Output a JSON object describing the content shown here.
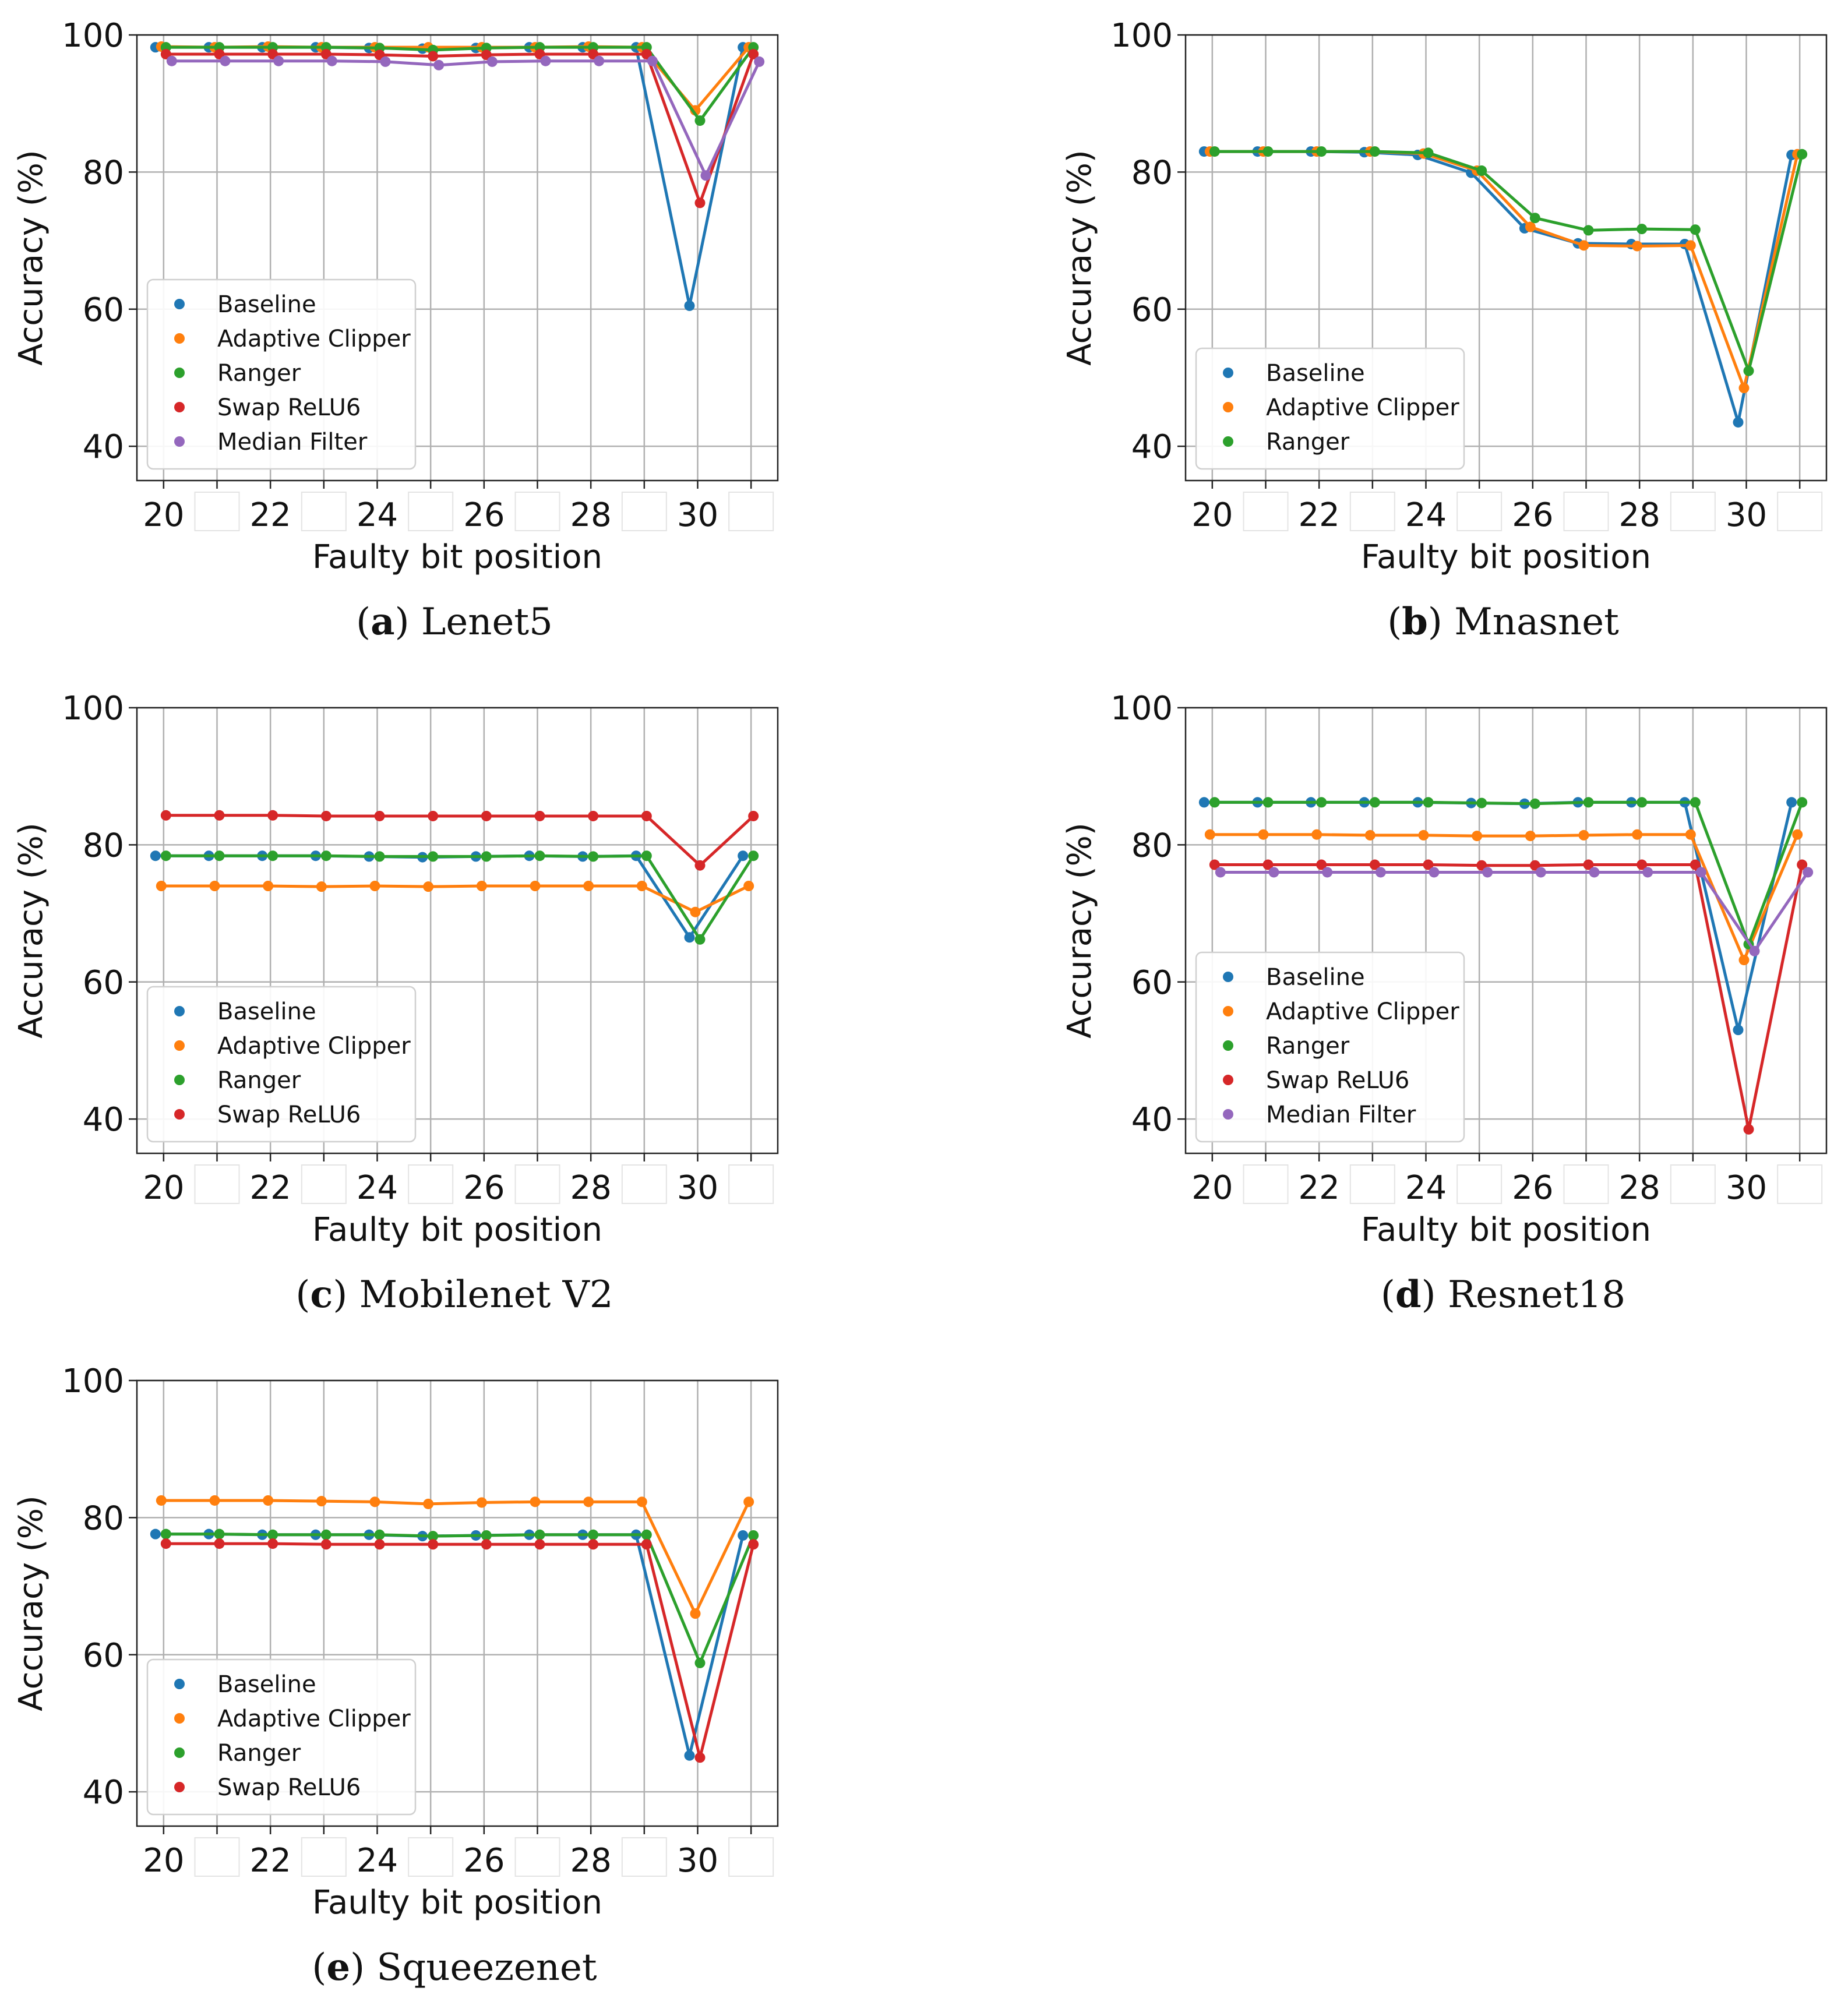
{
  "colors": {
    "Baseline": "#1f77b4",
    "Adaptive Clipper": "#ff7f0e",
    "Ranger": "#2ca02c",
    "Swap ReLU6": "#d62728",
    "Median Filter": "#9467bd"
  },
  "chart_data": [
    {
      "panel": "a",
      "type": "line",
      "caption_letter": "a",
      "caption_text": "Lenet5",
      "xlabel": "Faulty bit position",
      "ylabel": "Accuracy (%)",
      "xticks": [
        "20",
        "22",
        "24",
        "26",
        "28",
        "30"
      ],
      "yticks": [
        "40",
        "60",
        "80",
        "100"
      ],
      "ylim": [
        35,
        100
      ],
      "legend_position": "lower-left",
      "grid": true,
      "x": [
        20,
        21,
        22,
        23,
        24,
        25,
        26,
        27,
        28,
        29,
        30,
        31
      ],
      "series": [
        {
          "name": "Baseline",
          "values": [
            98.2,
            98.2,
            98.2,
            98.2,
            98.1,
            98.0,
            98.1,
            98.2,
            98.2,
            98.2,
            60.5,
            98.2
          ]
        },
        {
          "name": "Adaptive Clipper",
          "values": [
            98.3,
            98.2,
            98.3,
            98.2,
            98.2,
            98.2,
            98.2,
            98.2,
            98.3,
            98.2,
            89.0,
            98.2
          ]
        },
        {
          "name": "Ranger",
          "values": [
            98.2,
            98.2,
            98.2,
            98.2,
            98.1,
            97.8,
            98.1,
            98.2,
            98.2,
            98.2,
            87.5,
            98.2
          ]
        },
        {
          "name": "Swap ReLU6",
          "values": [
            97.2,
            97.2,
            97.2,
            97.2,
            97.1,
            96.9,
            97.1,
            97.2,
            97.2,
            97.2,
            75.5,
            97.2
          ]
        },
        {
          "name": "Median Filter",
          "values": [
            96.2,
            96.2,
            96.2,
            96.2,
            96.1,
            95.6,
            96.1,
            96.2,
            96.2,
            96.2,
            79.5,
            96.1
          ]
        }
      ]
    },
    {
      "panel": "b",
      "type": "line",
      "caption_letter": "b",
      "caption_text": "Mnasnet",
      "xlabel": "Faulty bit position",
      "ylabel": "Accuracy (%)",
      "xticks": [
        "20",
        "22",
        "24",
        "26",
        "28",
        "30"
      ],
      "yticks": [
        "40",
        "60",
        "80",
        "100"
      ],
      "ylim": [
        35,
        100
      ],
      "legend_position": "lower-left",
      "grid": true,
      "x": [
        20,
        21,
        22,
        23,
        24,
        25,
        26,
        27,
        28,
        29,
        30,
        31
      ],
      "series": [
        {
          "name": "Baseline",
          "values": [
            83.0,
            83.0,
            83.0,
            82.9,
            82.5,
            79.9,
            71.8,
            69.6,
            69.5,
            69.5,
            43.5,
            82.5
          ]
        },
        {
          "name": "Adaptive Clipper",
          "values": [
            83.0,
            83.0,
            83.0,
            83.0,
            82.7,
            80.2,
            72.0,
            69.3,
            69.2,
            69.3,
            48.5,
            82.6
          ]
        },
        {
          "name": "Ranger",
          "values": [
            83.0,
            83.0,
            83.0,
            83.0,
            82.8,
            80.2,
            73.3,
            71.5,
            71.7,
            71.6,
            51.0,
            82.6
          ]
        }
      ]
    },
    {
      "panel": "c",
      "type": "line",
      "caption_letter": "c",
      "caption_text": "Mobilenet V2",
      "xlabel": "Faulty bit position",
      "ylabel": "Accuracy (%)",
      "xticks": [
        "20",
        "22",
        "24",
        "26",
        "28",
        "30"
      ],
      "yticks": [
        "40",
        "60",
        "80",
        "100"
      ],
      "ylim": [
        35,
        100
      ],
      "legend_position": "lower-left",
      "grid": true,
      "x": [
        20,
        21,
        22,
        23,
        24,
        25,
        26,
        27,
        28,
        29,
        30,
        31
      ],
      "series": [
        {
          "name": "Baseline",
          "values": [
            78.4,
            78.4,
            78.4,
            78.4,
            78.3,
            78.2,
            78.3,
            78.4,
            78.3,
            78.4,
            66.5,
            78.4
          ]
        },
        {
          "name": "Adaptive Clipper",
          "values": [
            74.0,
            74.0,
            74.0,
            73.9,
            74.0,
            73.9,
            74.0,
            74.0,
            74.0,
            74.0,
            70.2,
            74.0
          ]
        },
        {
          "name": "Ranger",
          "values": [
            78.4,
            78.4,
            78.4,
            78.4,
            78.3,
            78.3,
            78.3,
            78.4,
            78.3,
            78.4,
            66.2,
            78.4
          ]
        },
        {
          "name": "Swap ReLU6",
          "values": [
            84.3,
            84.3,
            84.3,
            84.2,
            84.2,
            84.2,
            84.2,
            84.2,
            84.2,
            84.2,
            77.0,
            84.2
          ]
        }
      ]
    },
    {
      "panel": "d",
      "type": "line",
      "caption_letter": "d",
      "caption_text": "Resnet18",
      "xlabel": "Faulty bit position",
      "ylabel": "Accuracy (%)",
      "xticks": [
        "20",
        "22",
        "24",
        "26",
        "28",
        "30"
      ],
      "yticks": [
        "40",
        "60",
        "80",
        "100"
      ],
      "ylim": [
        35,
        100
      ],
      "legend_position": "lower-left",
      "grid": true,
      "x": [
        20,
        21,
        22,
        23,
        24,
        25,
        26,
        27,
        28,
        29,
        30,
        31
      ],
      "series": [
        {
          "name": "Baseline",
          "values": [
            86.2,
            86.2,
            86.2,
            86.2,
            86.2,
            86.1,
            86.0,
            86.2,
            86.2,
            86.2,
            53.0,
            86.2
          ]
        },
        {
          "name": "Adaptive Clipper",
          "values": [
            81.5,
            81.5,
            81.5,
            81.4,
            81.4,
            81.3,
            81.3,
            81.4,
            81.5,
            81.5,
            63.2,
            81.5
          ]
        },
        {
          "name": "Ranger",
          "values": [
            86.2,
            86.2,
            86.2,
            86.2,
            86.2,
            86.1,
            86.0,
            86.2,
            86.2,
            86.2,
            65.5,
            86.2
          ]
        },
        {
          "name": "Swap ReLU6",
          "values": [
            77.1,
            77.1,
            77.1,
            77.1,
            77.1,
            77.0,
            77.0,
            77.1,
            77.1,
            77.1,
            38.5,
            77.1
          ]
        },
        {
          "name": "Median Filter",
          "values": [
            76.0,
            76.0,
            76.0,
            76.0,
            76.0,
            76.0,
            76.0,
            76.0,
            76.0,
            76.0,
            64.5,
            76.0
          ]
        }
      ]
    },
    {
      "panel": "e",
      "type": "line",
      "caption_letter": "e",
      "caption_text": "Squeezenet",
      "xlabel": "Faulty bit position",
      "ylabel": "Accuracy (%)",
      "xticks": [
        "20",
        "22",
        "24",
        "26",
        "28",
        "30"
      ],
      "yticks": [
        "40",
        "60",
        "80",
        "100"
      ],
      "ylim": [
        35,
        100
      ],
      "legend_position": "lower-left",
      "grid": true,
      "x": [
        20,
        21,
        22,
        23,
        24,
        25,
        26,
        27,
        28,
        29,
        30,
        31
      ],
      "series": [
        {
          "name": "Baseline",
          "values": [
            77.6,
            77.6,
            77.5,
            77.5,
            77.5,
            77.3,
            77.4,
            77.5,
            77.5,
            77.5,
            45.3,
            77.4
          ]
        },
        {
          "name": "Adaptive Clipper",
          "values": [
            82.5,
            82.5,
            82.5,
            82.4,
            82.3,
            82.0,
            82.2,
            82.3,
            82.3,
            82.3,
            66.0,
            82.3
          ]
        },
        {
          "name": "Ranger",
          "values": [
            77.6,
            77.6,
            77.5,
            77.5,
            77.5,
            77.3,
            77.4,
            77.5,
            77.5,
            77.5,
            58.8,
            77.4
          ]
        },
        {
          "name": "Swap ReLU6",
          "values": [
            76.2,
            76.2,
            76.2,
            76.1,
            76.1,
            76.1,
            76.1,
            76.1,
            76.1,
            76.1,
            45.0,
            76.1
          ]
        }
      ]
    }
  ]
}
